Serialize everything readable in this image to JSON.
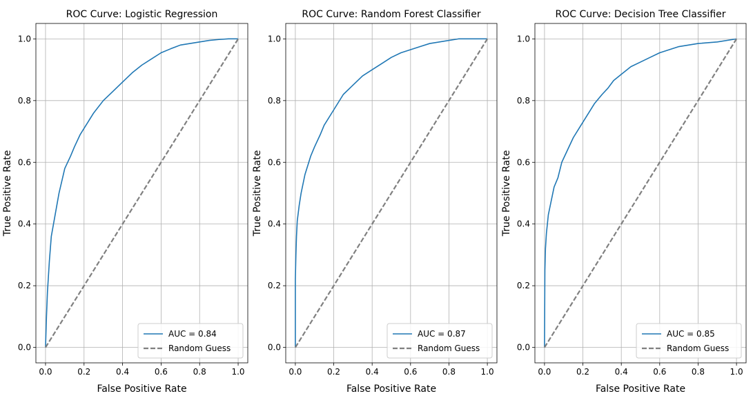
{
  "chart_data": [
    {
      "type": "line",
      "title": "ROC Curve: Logistic Regression",
      "xlabel": "False Positive Rate",
      "ylabel": "True Positive Rate",
      "xlim": [
        -0.05,
        1.05
      ],
      "ylim": [
        -0.05,
        1.05
      ],
      "xticks": [
        0.0,
        0.2,
        0.4,
        0.6,
        0.8,
        1.0
      ],
      "yticks": [
        0.0,
        0.2,
        0.4,
        0.6,
        0.8,
        1.0
      ],
      "xtick_labels": [
        "0.0",
        "0.2",
        "0.4",
        "0.6",
        "0.8",
        "1.0"
      ],
      "ytick_labels": [
        "0.0",
        "0.2",
        "0.4",
        "0.6",
        "0.8",
        "1.0"
      ],
      "grid": true,
      "legend_position": "lower-right",
      "series": [
        {
          "name": "AUC = 0.84",
          "color": "#1f77b4",
          "style": "solid",
          "x": [
            0.0,
            0.005,
            0.01,
            0.02,
            0.03,
            0.05,
            0.07,
            0.1,
            0.13,
            0.15,
            0.18,
            0.2,
            0.25,
            0.3,
            0.35,
            0.4,
            0.45,
            0.5,
            0.55,
            0.6,
            0.65,
            0.7,
            0.75,
            0.8,
            0.85,
            0.9,
            0.95,
            1.0
          ],
          "y": [
            0.0,
            0.1,
            0.18,
            0.28,
            0.36,
            0.43,
            0.5,
            0.58,
            0.62,
            0.65,
            0.69,
            0.71,
            0.76,
            0.8,
            0.83,
            0.86,
            0.89,
            0.915,
            0.935,
            0.955,
            0.968,
            0.98,
            0.985,
            0.99,
            0.995,
            0.998,
            1.0,
            1.0
          ]
        },
        {
          "name": "Random Guess",
          "color": "#808080",
          "style": "dashed",
          "x": [
            0.0,
            1.0
          ],
          "y": [
            0.0,
            1.0
          ]
        }
      ]
    },
    {
      "type": "line",
      "title": "ROC Curve: Random Forest Classifier",
      "xlabel": "False Positive Rate",
      "ylabel": "True Positive Rate",
      "xlim": [
        -0.05,
        1.05
      ],
      "ylim": [
        -0.05,
        1.05
      ],
      "xticks": [
        0.0,
        0.2,
        0.4,
        0.6,
        0.8,
        1.0
      ],
      "yticks": [
        0.0,
        0.2,
        0.4,
        0.6,
        0.8,
        1.0
      ],
      "xtick_labels": [
        "0.0",
        "0.2",
        "0.4",
        "0.6",
        "0.8",
        "1.0"
      ],
      "ytick_labels": [
        "0.0",
        "0.2",
        "0.4",
        "0.6",
        "0.8",
        "1.0"
      ],
      "grid": true,
      "legend_position": "lower-right",
      "series": [
        {
          "name": "AUC = 0.87",
          "color": "#1f77b4",
          "style": "solid",
          "x": [
            0.0,
            0.0,
            0.003,
            0.006,
            0.01,
            0.02,
            0.03,
            0.05,
            0.08,
            0.1,
            0.13,
            0.15,
            0.2,
            0.25,
            0.3,
            0.35,
            0.4,
            0.45,
            0.5,
            0.55,
            0.6,
            0.65,
            0.7,
            0.75,
            0.8,
            0.85,
            0.9,
            1.0
          ],
          "y": [
            0.0,
            0.22,
            0.3,
            0.36,
            0.41,
            0.46,
            0.5,
            0.56,
            0.62,
            0.65,
            0.69,
            0.72,
            0.77,
            0.82,
            0.85,
            0.88,
            0.9,
            0.92,
            0.94,
            0.955,
            0.965,
            0.975,
            0.985,
            0.99,
            0.995,
            1.0,
            1.0,
            1.0
          ]
        },
        {
          "name": "Random Guess",
          "color": "#808080",
          "style": "dashed",
          "x": [
            0.0,
            1.0
          ],
          "y": [
            0.0,
            1.0
          ]
        }
      ]
    },
    {
      "type": "line",
      "title": "ROC Curve: Decision Tree Classifier",
      "xlabel": "False Positive Rate",
      "ylabel": "True Positive Rate",
      "xlim": [
        -0.05,
        1.05
      ],
      "ylim": [
        -0.05,
        1.05
      ],
      "xticks": [
        0.0,
        0.2,
        0.4,
        0.6,
        0.8,
        1.0
      ],
      "yticks": [
        0.0,
        0.2,
        0.4,
        0.6,
        0.8,
        1.0
      ],
      "xtick_labels": [
        "0.0",
        "0.2",
        "0.4",
        "0.6",
        "0.8",
        "1.0"
      ],
      "ytick_labels": [
        "0.0",
        "0.2",
        "0.4",
        "0.6",
        "0.8",
        "1.0"
      ],
      "grid": true,
      "legend_position": "lower-right",
      "series": [
        {
          "name": "AUC = 0.85",
          "color": "#1f77b4",
          "style": "solid",
          "x": [
            0.0,
            0.002,
            0.005,
            0.01,
            0.02,
            0.03,
            0.05,
            0.07,
            0.09,
            0.12,
            0.15,
            0.18,
            0.22,
            0.26,
            0.3,
            0.33,
            0.36,
            0.4,
            0.45,
            0.5,
            0.55,
            0.6,
            0.65,
            0.7,
            0.75,
            0.8,
            0.9,
            1.0
          ],
          "y": [
            0.0,
            0.25,
            0.32,
            0.37,
            0.43,
            0.46,
            0.52,
            0.55,
            0.6,
            0.64,
            0.68,
            0.71,
            0.75,
            0.79,
            0.82,
            0.84,
            0.865,
            0.885,
            0.91,
            0.925,
            0.94,
            0.955,
            0.965,
            0.975,
            0.98,
            0.985,
            0.99,
            1.0
          ]
        },
        {
          "name": "Random Guess",
          "color": "#808080",
          "style": "dashed",
          "x": [
            0.0,
            1.0
          ],
          "y": [
            0.0,
            1.0
          ]
        }
      ]
    }
  ]
}
